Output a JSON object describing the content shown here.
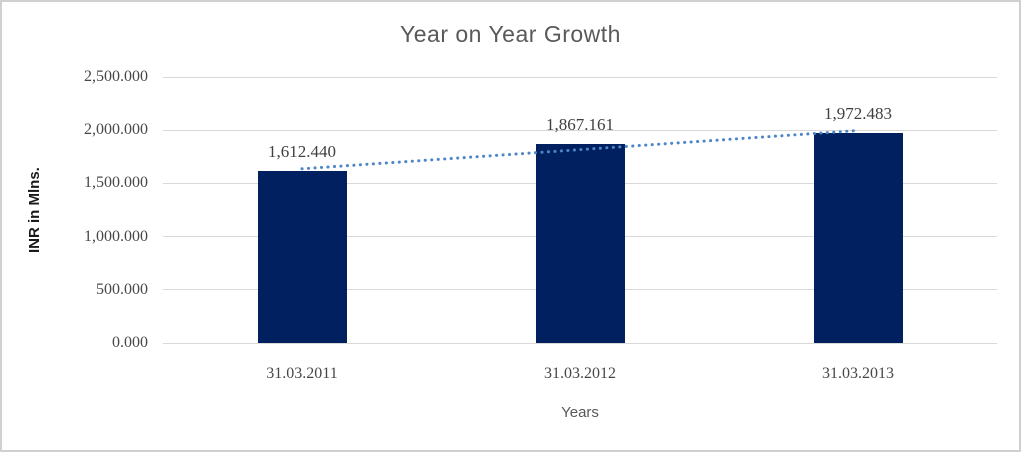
{
  "chart_data": {
    "type": "bar",
    "title": "Year on Year Growth",
    "xlabel": "Years",
    "ylabel": "INR in Mlns.",
    "categories": [
      "31.03.2011",
      "31.03.2012",
      "31.03.2013"
    ],
    "values": [
      1612.44,
      1867.161,
      1972.483
    ],
    "data_labels": [
      "1,612.440",
      "1,867.161",
      "1,972.483"
    ],
    "y_ticks": [
      {
        "value": 0,
        "label": "0.000"
      },
      {
        "value": 500,
        "label": "500.000"
      },
      {
        "value": 1000,
        "label": "1,000.000"
      },
      {
        "value": 1500,
        "label": "1,500.000"
      },
      {
        "value": 2000,
        "label": "2,000.000"
      },
      {
        "value": 2500,
        "label": "2,500.000"
      }
    ],
    "ylim": [
      0,
      2500
    ],
    "grid": true,
    "legend": false,
    "trendline": {
      "type": "linear",
      "style": "dotted"
    },
    "colors": {
      "bar": "#002060",
      "trend": "#4d86c6",
      "grid": "#d9d9d9",
      "title_text": "#595959",
      "tick_text": "#474747",
      "frame_border": "#d0d0d0"
    }
  }
}
